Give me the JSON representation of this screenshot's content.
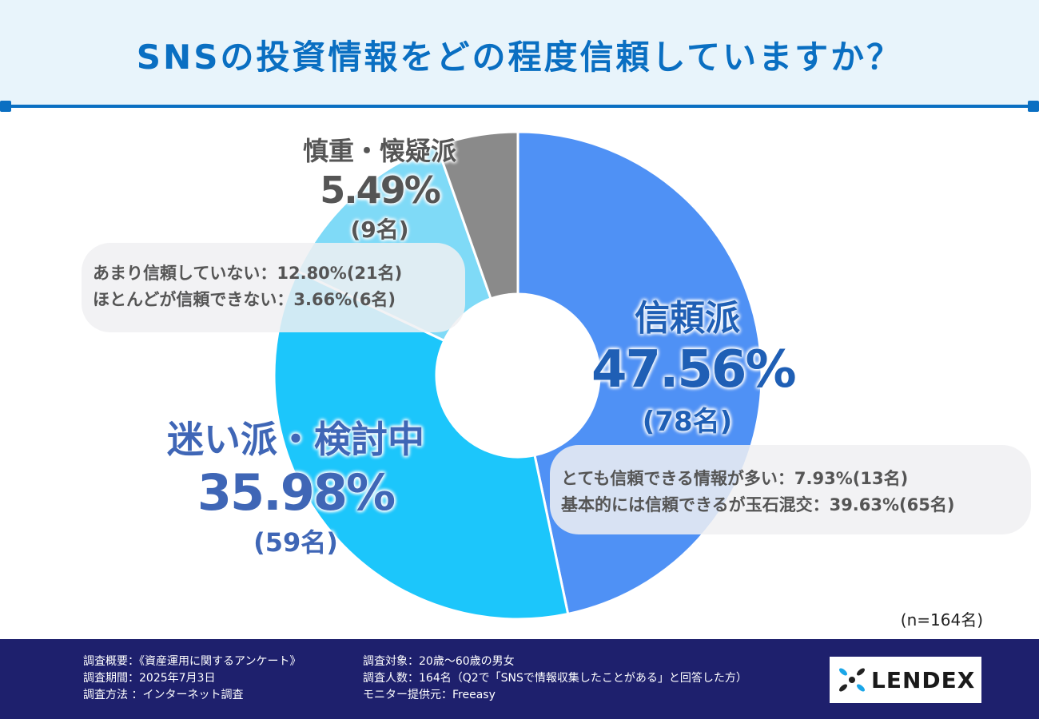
{
  "header": {
    "title": "SNSの投資情報をどの程度信頼していますか？"
  },
  "chart_data": {
    "type": "pie",
    "title": "SNSの投資情報をどの程度信頼していますか？",
    "sample": "(n=164名)",
    "categories": [
      "信頼派",
      "迷い派・検討中",
      "慎重・懐疑派"
    ],
    "slices": [
      {
        "name": "信頼派",
        "percent": 47.56,
        "percent_label": "47.56%",
        "count_label": "(78名)",
        "color": "#4f91f5"
      },
      {
        "name": "迷い派・検討中",
        "percent": 35.98,
        "percent_label": "35.98%",
        "count_label": "(59名)",
        "color": "#1cc6fb"
      },
      {
        "name": "慎重・懐疑派",
        "percent": 5.49,
        "percent_label": "5.49%",
        "count_label": "(9名)",
        "color": "#8a8a8a"
      }
    ],
    "sub_slices": [
      {
        "group": "迷い派・検討中",
        "label": "あまり信頼していない：12.80%(21名)",
        "percent": 12.8,
        "color": "#7fdaf7"
      },
      {
        "group": "慎重・懐疑派",
        "label": "ほとんどが信頼できない：3.66%(6名)",
        "percent": 3.66,
        "color": "#c4c4c4"
      },
      {
        "group": "信頼派",
        "label": "とても信頼できる情報が多い：7.93%(13名)",
        "percent": 7.93,
        "color": "#4f91f5"
      },
      {
        "group": "信頼派",
        "label": "基本的には信頼できるが玉石混交：39.63%(65名)",
        "percent": 39.63,
        "color": "#4f91f5"
      }
    ]
  },
  "footer": {
    "col1": [
      "調査概要：《資産運用に関するアンケート》",
      "調査期間：2025年7月3日",
      "調査方法 ：インターネット調査"
    ],
    "col2": [
      "調査対象：20歳〜60歳の男女",
      "調査人数：164名（Q2で「SNSで情報収集したことがある」と回答した方）",
      "モニター提供元：Freeasy"
    ],
    "logo_text": "LENDEX"
  },
  "colors": {
    "brand": "#0a6fc2",
    "footer_bg": "#1e206d"
  }
}
